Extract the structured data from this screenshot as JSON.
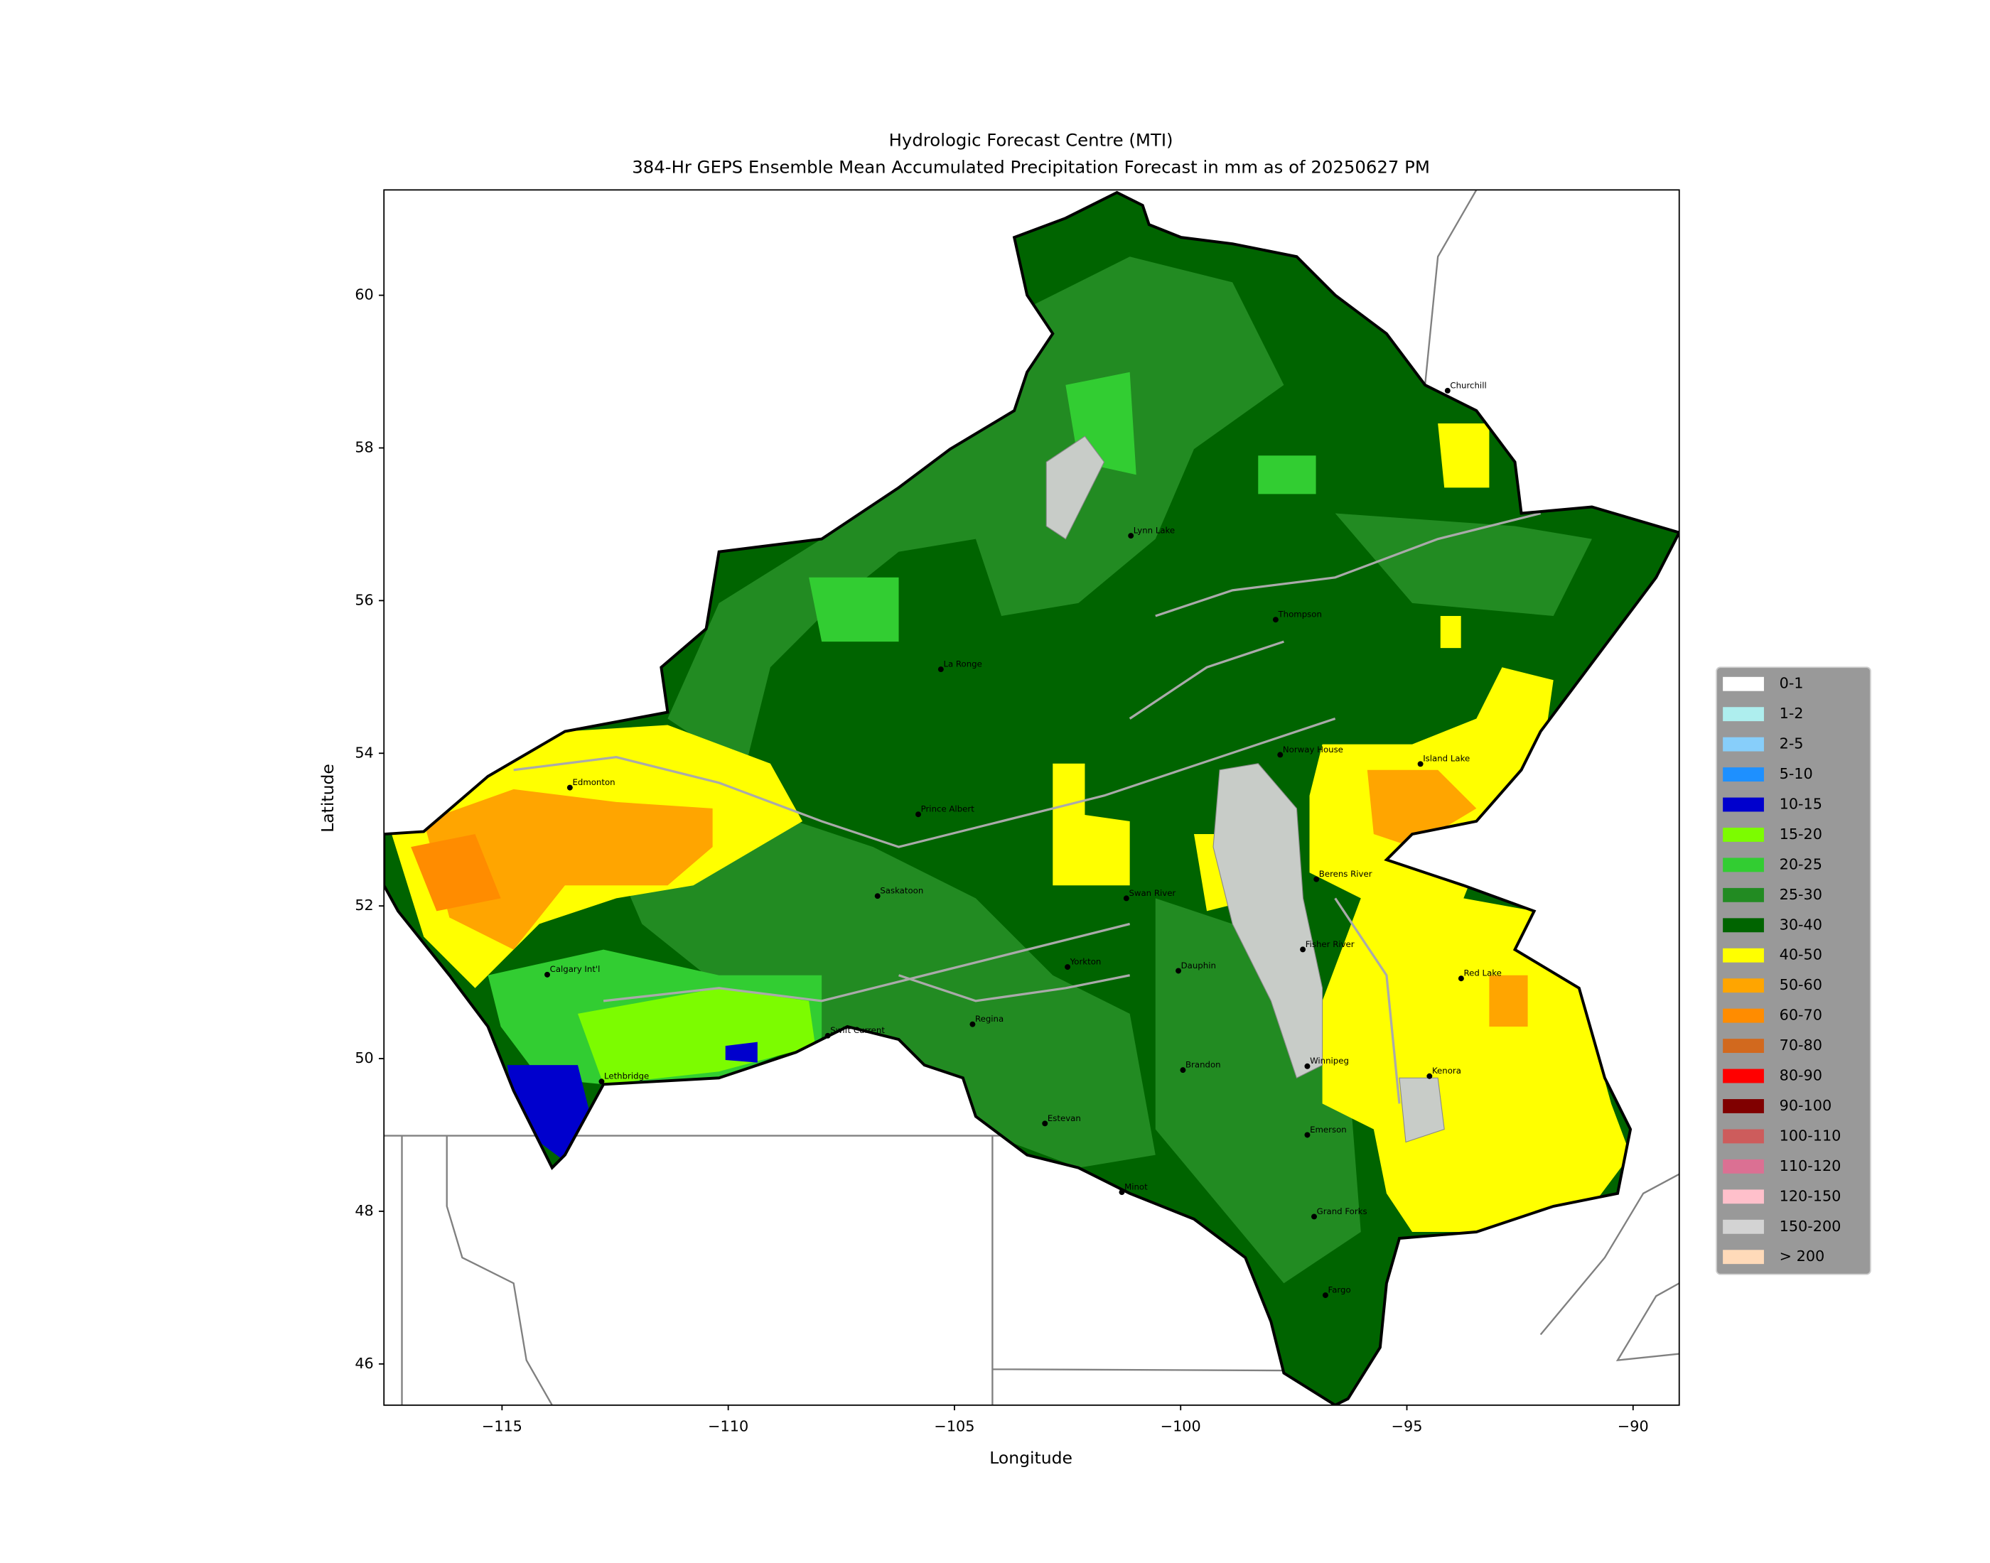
{
  "map": {
    "title": "Hydrologic Forecast Centre (MTI)",
    "subtitle": "384-Hr GEPS Ensemble Mean Accumulated Precipitation Forecast in mm as of 20250627 PM",
    "xlabel": "Longitude",
    "ylabel": "Latitude",
    "xlim": [
      -117.61,
      -88.98
    ],
    "ylim": [
      45.46,
      61.38
    ],
    "xticks": [
      {
        "value": -115,
        "label": "−115"
      },
      {
        "value": -110,
        "label": "−110"
      },
      {
        "value": -105,
        "label": "−105"
      },
      {
        "value": -100,
        "label": "−100"
      },
      {
        "value": -95,
        "label": "−95"
      },
      {
        "value": -90,
        "label": "−90"
      }
    ],
    "yticks": [
      46,
      48,
      50,
      52,
      54,
      56,
      58,
      60
    ],
    "legend": [
      {
        "label": "0-1",
        "color": "#ffffff"
      },
      {
        "label": "1-2",
        "color": "#aeeeee"
      },
      {
        "label": "2-5",
        "color": "#87cefa"
      },
      {
        "label": "5-10",
        "color": "#1e90ff"
      },
      {
        "label": "10-15",
        "color": "#0000cd"
      },
      {
        "label": "15-20",
        "color": "#7cfc00"
      },
      {
        "label": "20-25",
        "color": "#32cd32"
      },
      {
        "label": "25-30",
        "color": "#228b22"
      },
      {
        "label": "30-40",
        "color": "#006400"
      },
      {
        "label": "40-50",
        "color": "#ffff00"
      },
      {
        "label": "50-60",
        "color": "#ffa500"
      },
      {
        "label": "60-70",
        "color": "#ff8c00"
      },
      {
        "label": "70-80",
        "color": "#d2691e"
      },
      {
        "label": "80-90",
        "color": "#ff0000"
      },
      {
        "label": "90-100",
        "color": "#800000"
      },
      {
        "label": "100-110",
        "color": "#cd5c5c"
      },
      {
        "label": "110-120",
        "color": "#db7093"
      },
      {
        "label": "120-150",
        "color": "#ffc0cb"
      },
      {
        "label": "150-200",
        "color": "#d3d3d3"
      },
      {
        "label": "> 200",
        "color": "#ffdab9"
      }
    ],
    "cities": [
      {
        "name": "Churchill",
        "lon": -94.1,
        "lat": 58.75
      },
      {
        "name": "Lynn Lake",
        "lon": -101.1,
        "lat": 56.85
      },
      {
        "name": "Thompson",
        "lon": -97.9,
        "lat": 55.75
      },
      {
        "name": "La Ronge",
        "lon": -105.3,
        "lat": 55.1
      },
      {
        "name": "Norway House",
        "lon": -97.8,
        "lat": 53.98
      },
      {
        "name": "Island Lake",
        "lon": -94.7,
        "lat": 53.86
      },
      {
        "name": "Edmonton",
        "lon": -113.5,
        "lat": 53.55
      },
      {
        "name": "Prince Albert",
        "lon": -105.8,
        "lat": 53.2
      },
      {
        "name": "Berens River",
        "lon": -97.0,
        "lat": 52.35
      },
      {
        "name": "Saskatoon",
        "lon": -106.7,
        "lat": 52.13
      },
      {
        "name": "Swan River",
        "lon": -101.2,
        "lat": 52.1
      },
      {
        "name": "Fisher River",
        "lon": -97.3,
        "lat": 51.43
      },
      {
        "name": "Yorkton",
        "lon": -102.5,
        "lat": 51.2
      },
      {
        "name": "Dauphin",
        "lon": -100.05,
        "lat": 51.15
      },
      {
        "name": "Calgary Int'l",
        "lon": -114.0,
        "lat": 51.1
      },
      {
        "name": "Red Lake",
        "lon": -93.8,
        "lat": 51.05
      },
      {
        "name": "Regina",
        "lon": -104.6,
        "lat": 50.45
      },
      {
        "name": "Swift Current",
        "lon": -107.8,
        "lat": 50.3
      },
      {
        "name": "Brandon",
        "lon": -99.95,
        "lat": 49.85
      },
      {
        "name": "Winnipeg",
        "lon": -97.2,
        "lat": 49.9
      },
      {
        "name": "Kenora",
        "lon": -94.5,
        "lat": 49.77
      },
      {
        "name": "Lethbridge",
        "lon": -112.8,
        "lat": 49.7
      },
      {
        "name": "Estevan",
        "lon": -103.0,
        "lat": 49.15
      },
      {
        "name": "Emerson",
        "lon": -97.2,
        "lat": 49.0
      },
      {
        "name": "Minot",
        "lon": -101.3,
        "lat": 48.25
      },
      {
        "name": "Grand Forks",
        "lon": -97.05,
        "lat": 47.93
      },
      {
        "name": "Fargo",
        "lon": -96.8,
        "lat": 46.9
      }
    ]
  }
}
